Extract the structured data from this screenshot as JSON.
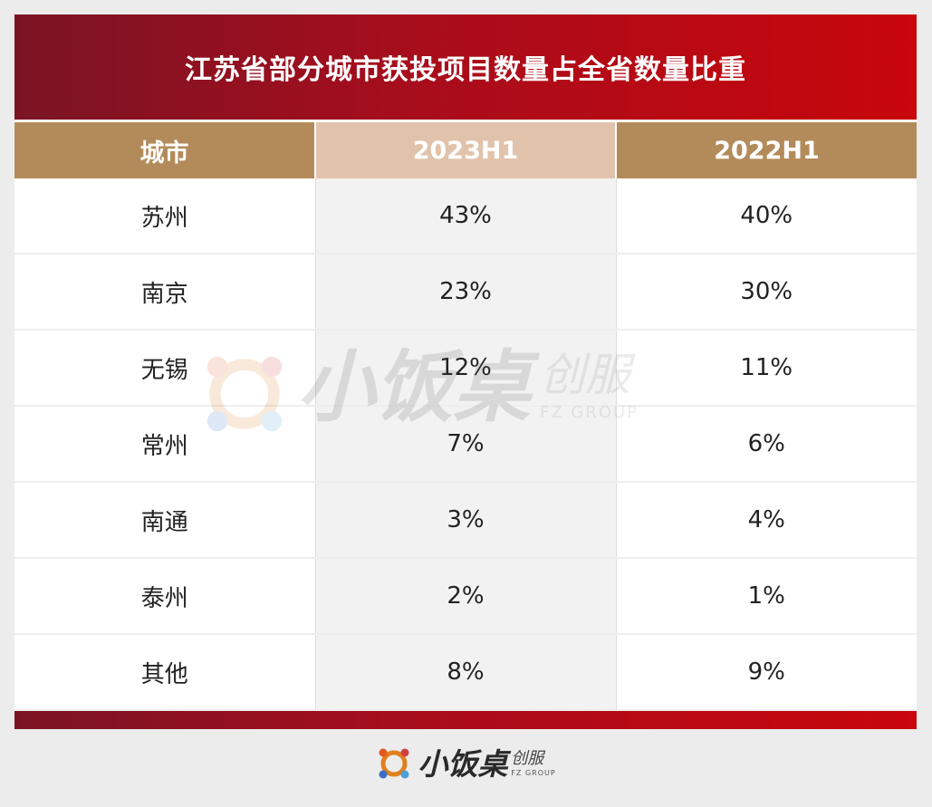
{
  "title": "江苏省部分城市获投项目数量占全省数量比重",
  "chart_data": {
    "type": "table",
    "title": "江苏省部分城市获投项目数量占全省数量比重",
    "columns": [
      "城市",
      "2023H1",
      "2022H1"
    ],
    "rows": [
      {
        "city": "苏州",
        "h2023": "43%",
        "h2022": "40%"
      },
      {
        "city": "南京",
        "h2023": "23%",
        "h2022": "30%"
      },
      {
        "city": "无锡",
        "h2023": "12%",
        "h2022": "11%"
      },
      {
        "city": "常州",
        "h2023": "7%",
        "h2022": "6%"
      },
      {
        "city": "南通",
        "h2023": "3%",
        "h2022": "4%"
      },
      {
        "city": "泰州",
        "h2023": "2%",
        "h2022": "1%"
      },
      {
        "city": "其他",
        "h2023": "8%",
        "h2022": "9%"
      }
    ],
    "colors": {
      "title_bar": "#b00a18",
      "header": "#b38b5a",
      "header_highlight": "#e1c2ab",
      "highlight_column": "#f2f2f2"
    }
  },
  "brand": {
    "name": "小饭桌",
    "sub": "创服",
    "tagline": "FZ GROUP"
  },
  "watermark": {
    "name": "小饭桌",
    "sub": "创服",
    "tagline": "FZ GROUP"
  }
}
